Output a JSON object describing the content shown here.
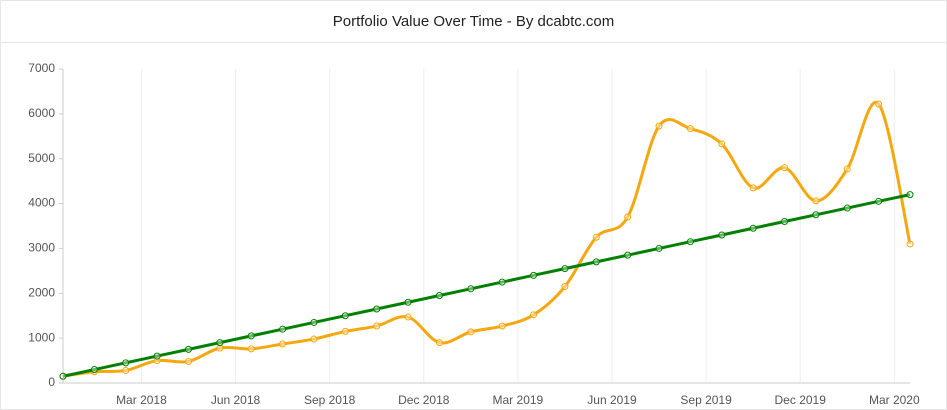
{
  "chart_data": {
    "type": "line",
    "title": "Portfolio Value Over Time - By dcabtc.com",
    "x": [
      "2017-12",
      "2018-01",
      "2018-02",
      "2018-03",
      "2018-04",
      "2018-05",
      "2018-06",
      "2018-07",
      "2018-08",
      "2018-09",
      "2018-10",
      "2018-11",
      "2018-12",
      "2019-01",
      "2019-02",
      "2019-03",
      "2019-04",
      "2019-05",
      "2019-06",
      "2019-07",
      "2019-08",
      "2019-09",
      "2019-10",
      "2019-11",
      "2019-12",
      "2020-01",
      "2020-02",
      "2020-03"
    ],
    "series": [
      {
        "color": "#f5a70f",
        "values": [
          150,
          250,
          280,
          500,
          480,
          780,
          760,
          870,
          980,
          1150,
          1270,
          1470,
          900,
          1140,
          1270,
          1520,
          2150,
          3250,
          3700,
          5730,
          5670,
          5330,
          4350,
          4800,
          4060,
          4770,
          6220,
          3100
        ]
      },
      {
        "color": "#008000",
        "values": [
          150,
          300,
          450,
          600,
          750,
          900,
          1050,
          1200,
          1350,
          1500,
          1650,
          1800,
          1950,
          2100,
          2250,
          2400,
          2550,
          2700,
          2850,
          3000,
          3150,
          3300,
          3450,
          3600,
          3750,
          3900,
          4050,
          4200
        ]
      }
    ],
    "ylim": [
      0,
      7000
    ],
    "yticks": [
      0,
      1000,
      2000,
      3000,
      4000,
      5000,
      6000,
      7000
    ],
    "xticks": [
      {
        "value": "2018-03",
        "label": "Mar 2018"
      },
      {
        "value": "2018-06",
        "label": "Jun 2018"
      },
      {
        "value": "2018-09",
        "label": "Sep 2018"
      },
      {
        "value": "2018-12",
        "label": "Dec 2018"
      },
      {
        "value": "2019-03",
        "label": "Mar 2019"
      },
      {
        "value": "2019-06",
        "label": "Jun 2019"
      },
      {
        "value": "2019-09",
        "label": "Sep 2019"
      },
      {
        "value": "2019-12",
        "label": "Dec 2019"
      },
      {
        "value": "2020-03",
        "label": "Mar 2020"
      }
    ],
    "grid": true
  }
}
